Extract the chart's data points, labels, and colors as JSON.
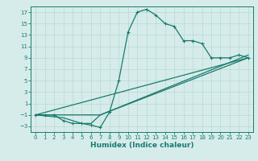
{
  "xlabel": "Humidex (Indice chaleur)",
  "bg_color": "#d6ecea",
  "grid_color": "#b8d8d4",
  "line_color": "#1a7a6e",
  "xlim": [
    -0.5,
    23.5
  ],
  "ylim": [
    -4,
    18
  ],
  "xticks": [
    0,
    1,
    2,
    3,
    4,
    5,
    6,
    7,
    8,
    9,
    10,
    11,
    12,
    13,
    14,
    15,
    16,
    17,
    18,
    19,
    20,
    21,
    22,
    23
  ],
  "yticks": [
    -3,
    -1,
    1,
    3,
    5,
    7,
    9,
    11,
    13,
    15,
    17
  ],
  "curve_x": [
    0,
    1,
    2,
    3,
    4,
    5,
    6,
    7,
    8,
    9,
    10,
    11,
    12,
    13,
    14,
    15,
    16,
    17,
    18,
    19,
    20,
    21,
    22,
    23
  ],
  "curve_y": [
    -1,
    -1,
    -1,
    -2,
    -2.5,
    -2.5,
    -2.8,
    -3.2,
    -0.5,
    5,
    13.5,
    17,
    17.5,
    16.5,
    15,
    14.5,
    12,
    12,
    11.5,
    9,
    9,
    9,
    9.5,
    9
  ],
  "line1_x": [
    0,
    23
  ],
  "line1_y": [
    -1,
    9
  ],
  "line2_x": [
    0,
    7,
    23
  ],
  "line2_y": [
    -1,
    -1,
    9.5
  ],
  "line3_x": [
    0,
    3,
    5,
    6,
    7,
    23
  ],
  "line3_y": [
    -1,
    -1.5,
    -2.5,
    -2.5,
    -1,
    9
  ]
}
